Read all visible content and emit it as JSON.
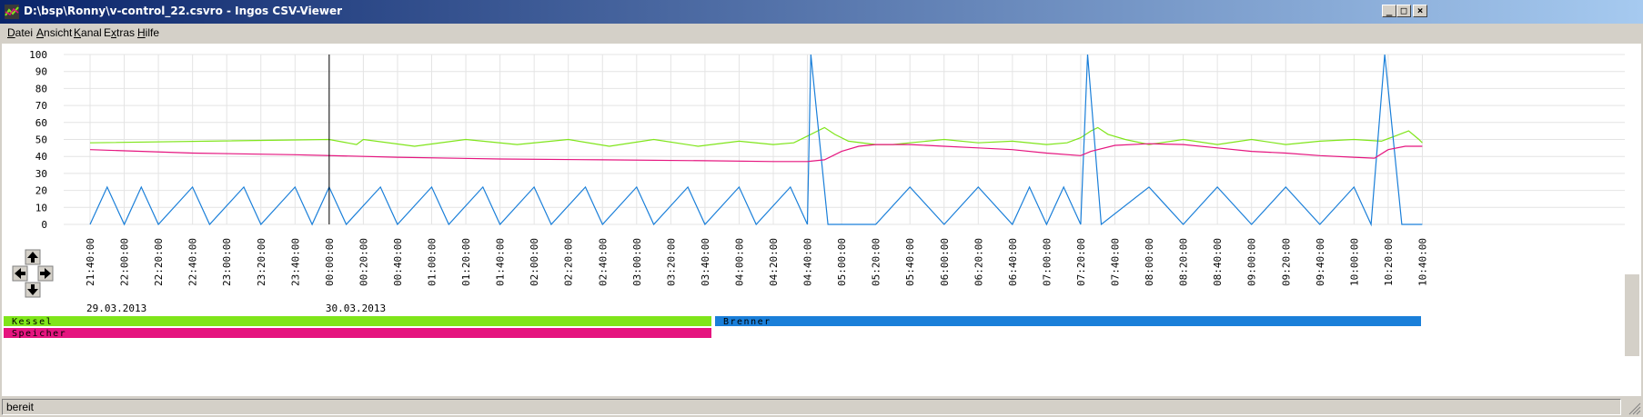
{
  "window": {
    "title": "D:\\bsp\\Ronny\\v-control_22.csvro - Ingos CSV-Viewer"
  },
  "menu": [
    {
      "pre": "",
      "acc": "D",
      "post": "atei"
    },
    {
      "pre": "",
      "acc": "A",
      "post": "nsicht"
    },
    {
      "pre": "",
      "acc": "K",
      "post": "anal"
    },
    {
      "pre": "E",
      "acc": "x",
      "post": "tras"
    },
    {
      "pre": "",
      "acc": "H",
      "post": "ilfe"
    }
  ],
  "chart_data": {
    "type": "line",
    "ylim": [
      0,
      100
    ],
    "y_ticks": [
      "100",
      "90",
      "80",
      "70",
      "60",
      "50",
      "40",
      "30",
      "20",
      "10",
      "0"
    ],
    "x_ticks": [
      "21:40:00",
      "22:00:00",
      "22:20:00",
      "22:40:00",
      "23:00:00",
      "23:20:00",
      "23:40:00",
      "00:00:00",
      "00:20:00",
      "00:40:00",
      "01:00:00",
      "01:20:00",
      "01:40:00",
      "02:00:00",
      "02:20:00",
      "02:40:00",
      "03:00:00",
      "03:20:00",
      "03:40:00",
      "04:00:00",
      "04:20:00",
      "04:40:00",
      "05:00:00",
      "05:20:00",
      "05:40:00",
      "06:00:00",
      "06:20:00",
      "06:40:00",
      "07:00:00",
      "07:20:00",
      "07:40:00",
      "08:00:00",
      "08:20:00",
      "08:40:00",
      "09:00:00",
      "09:20:00",
      "09:40:00",
      "10:00:00",
      "10:20:00",
      "10:40:00"
    ],
    "dates": [
      {
        "label": "29.03.2013",
        "at_tick": 0
      },
      {
        "label": "30.03.2013",
        "at_tick": 7
      }
    ],
    "cursor_at_tick": 7,
    "grid": true,
    "series": [
      {
        "name": "Kessel",
        "color": "#7fe51a",
        "values": [
          [
            0,
            48
          ],
          [
            7,
            50
          ],
          [
            7.8,
            47
          ],
          [
            8,
            50
          ],
          [
            9.5,
            46
          ],
          [
            11,
            50
          ],
          [
            12.5,
            47
          ],
          [
            14,
            50
          ],
          [
            15.2,
            46
          ],
          [
            16.5,
            50
          ],
          [
            17.8,
            46
          ],
          [
            19,
            49
          ],
          [
            20,
            47
          ],
          [
            20.6,
            48
          ],
          [
            21,
            52
          ],
          [
            21.3,
            55
          ],
          [
            21.5,
            57
          ],
          [
            21.8,
            53
          ],
          [
            22.2,
            49
          ],
          [
            23,
            47
          ],
          [
            23.5,
            47
          ],
          [
            24,
            48
          ],
          [
            25,
            50
          ],
          [
            26,
            48
          ],
          [
            27,
            49
          ],
          [
            28,
            47
          ],
          [
            28.6,
            48
          ],
          [
            29,
            51
          ],
          [
            29.3,
            55
          ],
          [
            29.5,
            57
          ],
          [
            29.8,
            53
          ],
          [
            30.3,
            50
          ],
          [
            31,
            47
          ],
          [
            32,
            50
          ],
          [
            33,
            47
          ],
          [
            34,
            50
          ],
          [
            35,
            47
          ],
          [
            36,
            49
          ],
          [
            37,
            50
          ],
          [
            37.8,
            49
          ],
          [
            38.2,
            52
          ],
          [
            38.6,
            55
          ],
          [
            38.9,
            50
          ],
          [
            39,
            48
          ]
        ]
      },
      {
        "name": "Brenner",
        "color": "#1a7fd9",
        "values": [
          [
            0,
            0
          ],
          [
            0.5,
            22
          ],
          [
            1,
            0
          ],
          [
            1.5,
            22
          ],
          [
            2,
            0
          ],
          [
            3,
            22
          ],
          [
            3.5,
            0
          ],
          [
            4.5,
            22
          ],
          [
            5,
            0
          ],
          [
            6,
            22
          ],
          [
            6.5,
            0
          ],
          [
            7,
            22
          ],
          [
            7.5,
            0
          ],
          [
            8.5,
            22
          ],
          [
            9,
            0
          ],
          [
            10,
            22
          ],
          [
            10.5,
            0
          ],
          [
            11.5,
            22
          ],
          [
            12,
            0
          ],
          [
            13,
            22
          ],
          [
            13.5,
            0
          ],
          [
            14.5,
            22
          ],
          [
            15,
            0
          ],
          [
            16,
            22
          ],
          [
            16.5,
            0
          ],
          [
            17.5,
            22
          ],
          [
            18,
            0
          ],
          [
            19,
            22
          ],
          [
            19.5,
            0
          ],
          [
            20.5,
            22
          ],
          [
            21,
            0
          ],
          [
            21.1,
            100
          ],
          [
            21.6,
            0
          ],
          [
            23,
            0
          ],
          [
            24,
            22
          ],
          [
            25,
            0
          ],
          [
            26,
            22
          ],
          [
            27,
            0
          ],
          [
            27.5,
            22
          ],
          [
            28,
            0
          ],
          [
            28.5,
            22
          ],
          [
            29,
            0
          ],
          [
            29.2,
            100
          ],
          [
            29.6,
            0
          ],
          [
            31,
            22
          ],
          [
            32,
            0
          ],
          [
            33,
            22
          ],
          [
            34,
            0
          ],
          [
            35,
            22
          ],
          [
            36,
            0
          ],
          [
            37,
            22
          ],
          [
            37.5,
            0
          ],
          [
            37.9,
            100
          ],
          [
            38.4,
            0
          ],
          [
            39,
            0
          ]
        ]
      },
      {
        "name": "Speicher",
        "color": "#e5157f",
        "values": [
          [
            0,
            44
          ],
          [
            3,
            42
          ],
          [
            6,
            41
          ],
          [
            9,
            39.5
          ],
          [
            12,
            38.5
          ],
          [
            15,
            38
          ],
          [
            18,
            37.5
          ],
          [
            20,
            37
          ],
          [
            21,
            37
          ],
          [
            21.5,
            38
          ],
          [
            22,
            43
          ],
          [
            22.5,
            46
          ],
          [
            23,
            47
          ],
          [
            24,
            47
          ],
          [
            25,
            46
          ],
          [
            26,
            45
          ],
          [
            27,
            44
          ],
          [
            28,
            42
          ],
          [
            29,
            40.5
          ],
          [
            29.3,
            43
          ],
          [
            30,
            46.5
          ],
          [
            31,
            47.5
          ],
          [
            32,
            47
          ],
          [
            33,
            45
          ],
          [
            34,
            43
          ],
          [
            35,
            42
          ],
          [
            36,
            40.5
          ],
          [
            37,
            39.5
          ],
          [
            37.6,
            39
          ],
          [
            38,
            44
          ],
          [
            38.5,
            46
          ],
          [
            39,
            46
          ]
        ]
      }
    ],
    "legend": [
      {
        "name": "Kessel",
        "color": "#7fe51a"
      },
      {
        "name": "Brenner",
        "color": "#1a7fd9"
      },
      {
        "name": "Speicher",
        "color": "#e5157f"
      }
    ]
  },
  "status": {
    "text": "bereit"
  }
}
